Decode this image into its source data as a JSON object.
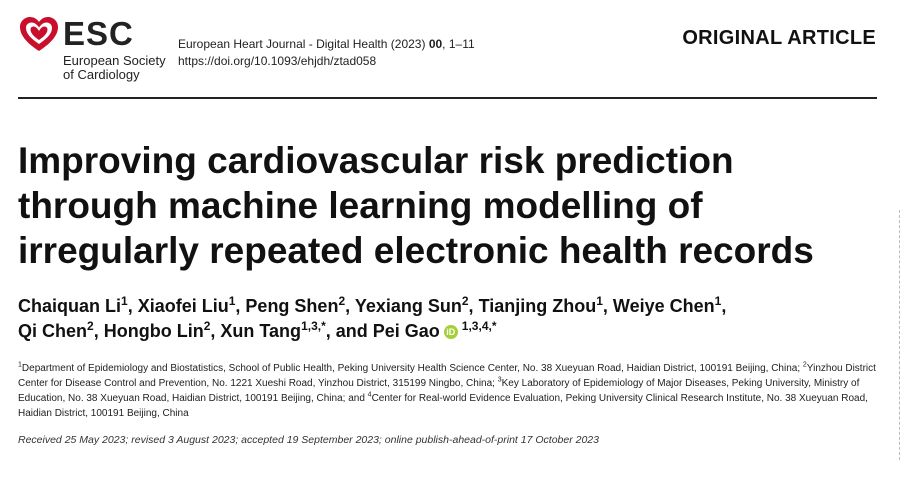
{
  "header": {
    "logo": {
      "icon": "esc-heart-logo-icon",
      "acronym": "ESC",
      "org_line1": "European Society",
      "org_line2": "of Cardiology",
      "color": "#c8102e"
    },
    "journal_name": "European Heart Journal - Digital Health (2023) ",
    "journal_volume": "00",
    "journal_pages": ", 1–11",
    "doi": "https://doi.org/10.1093/ehjdh/ztad058",
    "article_type": "ORIGINAL ARTICLE"
  },
  "article": {
    "title_line1": "Improving cardiovascular risk prediction",
    "title_line2": "through machine learning modelling of",
    "title_line3": "irregularly repeated electronic health records"
  },
  "authors": [
    {
      "name": "Chaiquan Li",
      "sup": "1",
      "sep": ", "
    },
    {
      "name": "Xiaofei Liu",
      "sup": "1",
      "sep": ", "
    },
    {
      "name": "Peng Shen",
      "sup": "2",
      "sep": ", "
    },
    {
      "name": "Yexiang Sun",
      "sup": "2",
      "sep": ", "
    },
    {
      "name": "Tianjing Zhou",
      "sup": "1",
      "sep": ", "
    },
    {
      "name": "Weiye Chen",
      "sup": "1",
      "sep": ","
    },
    {
      "name": "Qi Chen",
      "sup": "2",
      "sep": ", "
    },
    {
      "name": "Hongbo Lin",
      "sup": "2",
      "sep": ", "
    },
    {
      "name": "Xun Tang",
      "sup": "1,3,",
      "star": "*",
      "sep": ", and "
    },
    {
      "name": "Pei Gao",
      "orcid": "iD",
      "sup": "1,3,4,",
      "star": "*"
    }
  ],
  "affiliations": [
    {
      "sup": "1",
      "text": "Department of Epidemiology and Biostatistics, School of Public Health, Peking University Health Science Center, No. 38 Xueyuan Road, Haidian District, 100191 Beijing, China; "
    },
    {
      "sup": "2",
      "text": "Yinzhou District Center for Disease Control and Prevention, No. 1221 Xueshi Road, Yinzhou District, 315199 Ningbo, China; "
    },
    {
      "sup": "3",
      "text": "Key Laboratory of Epidemiology of Major Diseases, Peking University, Ministry of Education, No. 38 Xueyuan Road, Haidian District, 100191 Beijing, China; and "
    },
    {
      "sup": "4",
      "text": "Center for Real-world Evidence Evaluation, Peking University Clinical Research Institute, No. 38 Xueyuan Road, Haidian District, 100191 Beijing, China"
    }
  ],
  "history": "Received 25 May 2023; revised 3 August 2023; accepted 19 September 2023; online publish-ahead-of-print 17 October 2023"
}
